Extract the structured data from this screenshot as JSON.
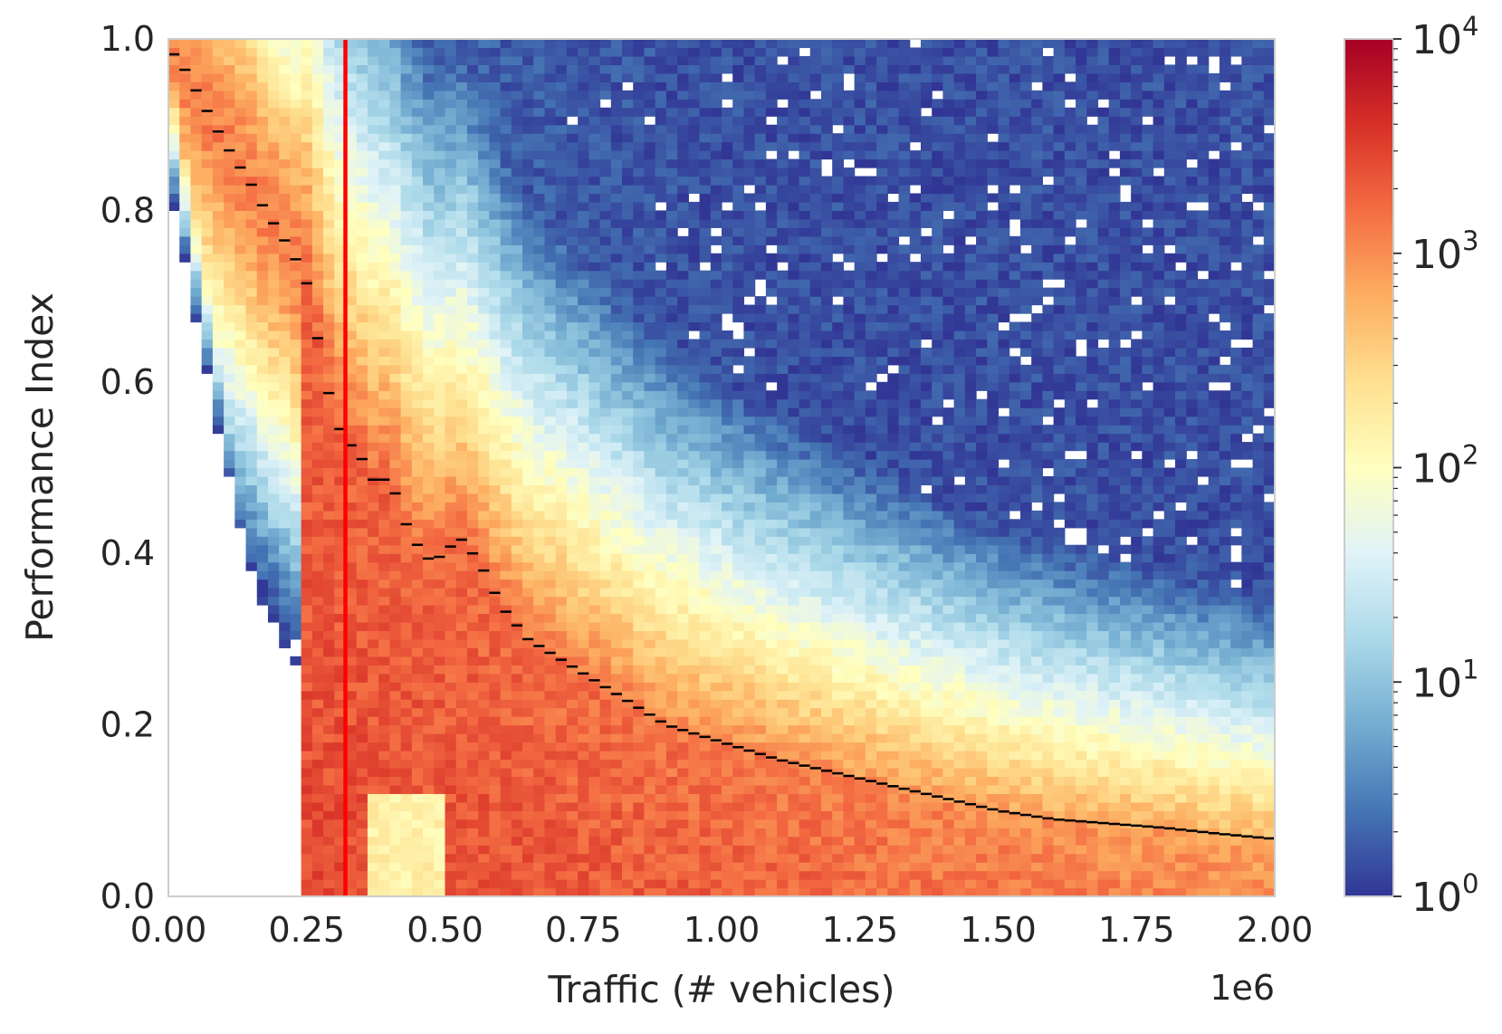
{
  "chart_data": {
    "type": "heatmap",
    "title": "",
    "xlabel": "Traffic (# vehicles)",
    "ylabel": "Performance Index",
    "x_offset_label": "1e6",
    "xlim": [
      0,
      2000000
    ],
    "ylim": [
      0,
      1
    ],
    "x_ticks": [
      0,
      250000,
      500000,
      750000,
      1000000,
      1250000,
      1500000,
      1750000,
      2000000
    ],
    "x_tick_labels": [
      "0.00",
      "0.25",
      "0.50",
      "0.75",
      "1.00",
      "1.25",
      "1.50",
      "1.75",
      "2.00"
    ],
    "y_ticks": [
      0,
      0.2,
      0.4,
      0.6,
      0.8,
      1.0
    ],
    "y_tick_labels": [
      "0.0",
      "0.2",
      "0.4",
      "0.6",
      "0.8",
      "1.0"
    ],
    "grid": false,
    "colormap": "RdYlBu_r",
    "colorbar": {
      "scale": "log",
      "range": [
        1,
        10000
      ],
      "ticks": [
        {
          "value": 1,
          "base": "10",
          "exp": "0"
        },
        {
          "value": 10,
          "base": "10",
          "exp": "1"
        },
        {
          "value": 100,
          "base": "10",
          "exp": "2"
        },
        {
          "value": 1000,
          "base": "10",
          "exp": "3"
        },
        {
          "value": 10000,
          "base": "10",
          "exp": "4"
        }
      ]
    },
    "vertical_line": {
      "x": 320000,
      "color": "#ff0000"
    },
    "median_line": {
      "color": "#000000",
      "points": [
        [
          0,
          0.99
        ],
        [
          25000,
          0.97
        ],
        [
          50000,
          0.94
        ],
        [
          75000,
          0.91
        ],
        [
          100000,
          0.88
        ],
        [
          125000,
          0.855
        ],
        [
          150000,
          0.83
        ],
        [
          175000,
          0.8
        ],
        [
          200000,
          0.775
        ],
        [
          225000,
          0.75
        ],
        [
          250000,
          0.715
        ],
        [
          275000,
          0.635
        ],
        [
          300000,
          0.555
        ],
        [
          325000,
          0.53
        ],
        [
          350000,
          0.51
        ],
        [
          375000,
          0.48
        ],
        [
          400000,
          0.49
        ],
        [
          425000,
          0.44
        ],
        [
          450000,
          0.41
        ],
        [
          475000,
          0.39
        ],
        [
          500000,
          0.4
        ],
        [
          525000,
          0.42
        ],
        [
          550000,
          0.4
        ],
        [
          575000,
          0.375
        ],
        [
          600000,
          0.34
        ],
        [
          650000,
          0.3
        ],
        [
          700000,
          0.28
        ],
        [
          750000,
          0.26
        ],
        [
          800000,
          0.24
        ],
        [
          850000,
          0.22
        ],
        [
          900000,
          0.2
        ],
        [
          1000000,
          0.18
        ],
        [
          1100000,
          0.16
        ],
        [
          1200000,
          0.145
        ],
        [
          1300000,
          0.13
        ],
        [
          1400000,
          0.115
        ],
        [
          1500000,
          0.1
        ],
        [
          1600000,
          0.09
        ],
        [
          1700000,
          0.085
        ],
        [
          1800000,
          0.08
        ],
        [
          1900000,
          0.073
        ],
        [
          2000000,
          0.067
        ]
      ]
    }
  }
}
